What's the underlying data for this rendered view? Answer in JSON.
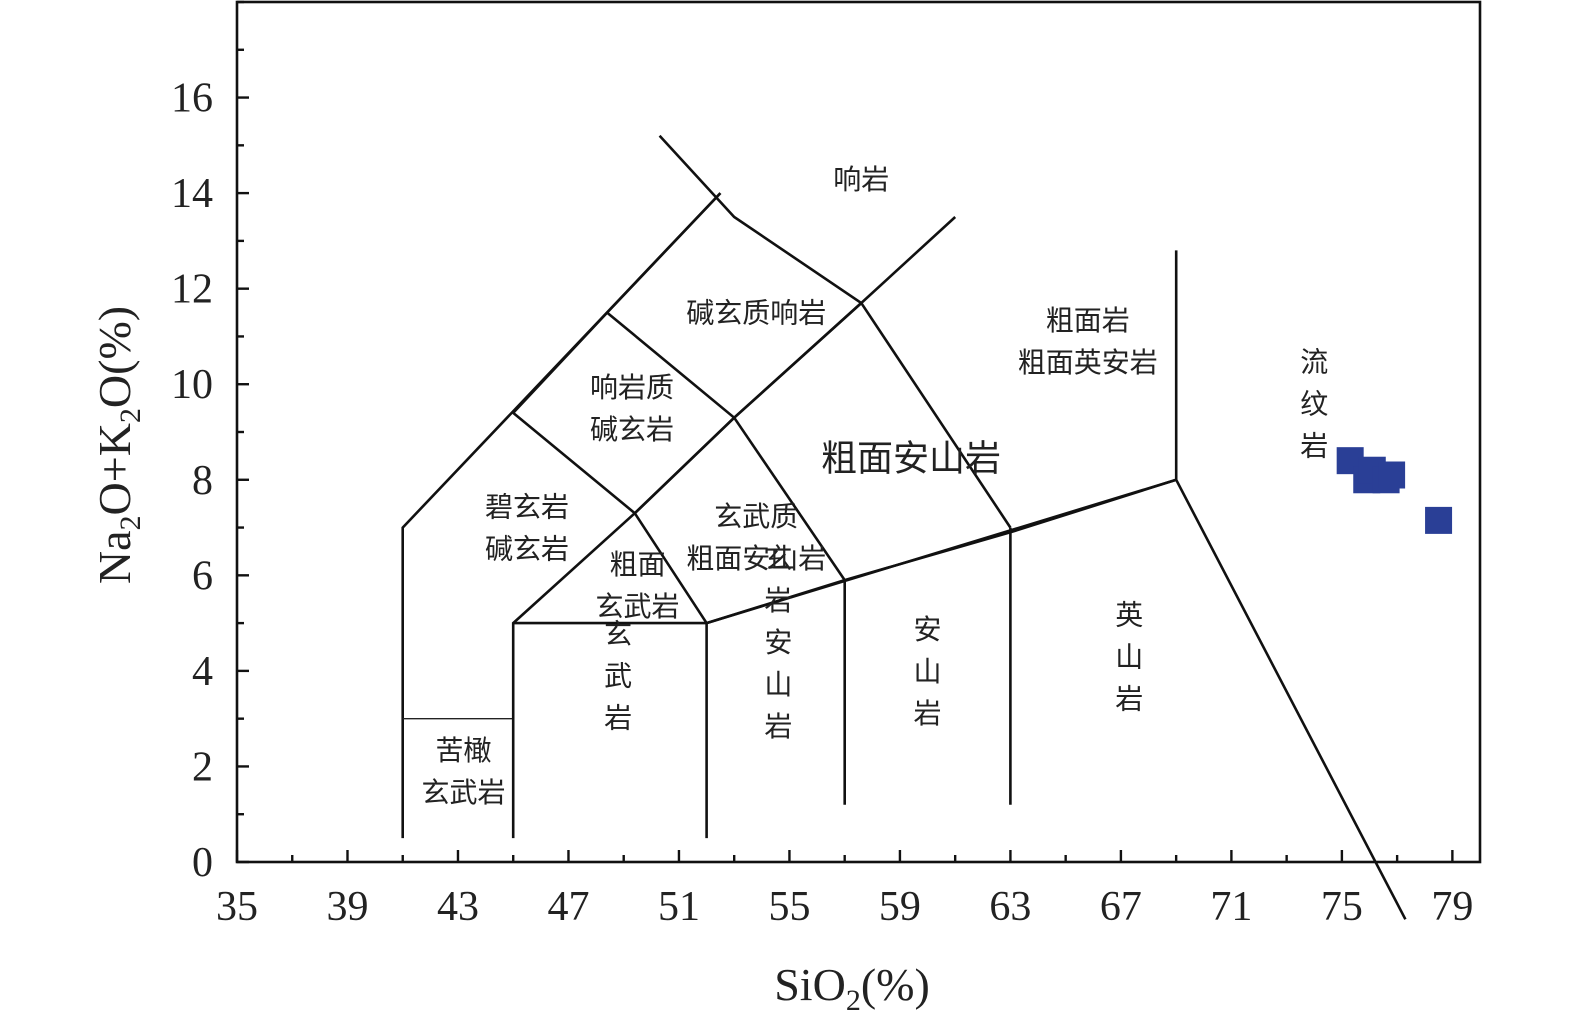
{
  "chart_data": {
    "type": "scatter",
    "xlabel": {
      "main": "SiO",
      "sub": "2",
      "tail": "(%)"
    },
    "ylabel": {
      "p1": "Na",
      "s1": "2",
      "p2": "O+K",
      "s2": "2",
      "p3": "O(%)"
    },
    "xlim": [
      35,
      80
    ],
    "ylim": [
      0,
      18
    ],
    "x_ticks": [
      35,
      39,
      43,
      47,
      51,
      55,
      59,
      63,
      67,
      71,
      75,
      79
    ],
    "x_tick_labels": [
      "35",
      "39",
      "43",
      "47",
      "51",
      "55",
      "59",
      "63",
      "67",
      "71",
      "75",
      "79"
    ],
    "y_ticks": [
      0,
      2,
      4,
      6,
      8,
      10,
      12,
      14,
      16
    ],
    "y_tick_labels": [
      "0",
      "2",
      "4",
      "6",
      "8",
      "10",
      "12",
      "14",
      "16"
    ],
    "x_minor_step": 2,
    "y_minor_step": 1,
    "grid": false,
    "series": [
      {
        "marker": "square",
        "color": "#2a3f96",
        "points": [
          {
            "x": 75.3,
            "y": 8.4
          },
          {
            "x": 75.9,
            "y": 8.0
          },
          {
            "x": 76.1,
            "y": 8.2
          },
          {
            "x": 76.6,
            "y": 8.0
          },
          {
            "x": 76.8,
            "y": 8.1
          },
          {
            "x": 78.5,
            "y": 7.15
          }
        ]
      }
    ],
    "boundaries": [
      [
        [
          41,
          0.5
        ],
        [
          41,
          7.0
        ],
        [
          52.5,
          14.0
        ]
      ],
      [
        [
          41,
          3.0
        ],
        [
          45,
          3.0
        ]
      ],
      [
        [
          45,
          0.5
        ],
        [
          45,
          5.0
        ],
        [
          49.4,
          7.3
        ],
        [
          53,
          9.3
        ],
        [
          57.6,
          11.7
        ],
        [
          61,
          13.5
        ]
      ],
      [
        [
          45,
          5.0
        ],
        [
          52,
          5.0
        ],
        [
          57,
          5.9
        ],
        [
          63,
          6.9
        ],
        [
          69,
          8.0
        ],
        [
          69,
          12.8
        ]
      ],
      [
        [
          52,
          0.5
        ],
        [
          52,
          5.0
        ],
        [
          69,
          8.0
        ],
        [
          77.3,
          -1.2
        ]
      ],
      [
        [
          45,
          9.4
        ],
        [
          48.4,
          11.5
        ],
        [
          52.5,
          14.0
        ]
      ],
      [
        [
          48.4,
          11.5
        ],
        [
          53,
          9.3
        ],
        [
          57.6,
          11.7
        ]
      ],
      [
        [
          50.3,
          15.2
        ],
        [
          53,
          13.5
        ],
        [
          57.6,
          11.7
        ],
        [
          63,
          7.0
        ]
      ],
      [
        [
          57,
          1.2
        ],
        [
          57,
          5.9
        ]
      ],
      [
        [
          63,
          1.2
        ],
        [
          63,
          7.0
        ]
      ],
      [
        [
          45,
          9.4
        ],
        [
          49.4,
          7.3
        ],
        [
          52,
          5.0
        ]
      ],
      [
        [
          49.4,
          7.3
        ],
        [
          53,
          9.3
        ]
      ],
      [
        [
          53,
          9.3
        ],
        [
          57,
          5.9
        ]
      ]
    ],
    "field_labels": [
      {
        "lines": [
          "响岩"
        ],
        "x": 57.6,
        "y": 14.3,
        "size": "normal"
      },
      {
        "lines": [
          "碱玄质响岩"
        ],
        "x": 53.8,
        "y": 11.5,
        "size": "normal"
      },
      {
        "lines": [
          "粗面岩",
          "粗面英安岩"
        ],
        "x": 65.8,
        "y": 10.9,
        "size": "normal"
      },
      {
        "lines": [
          "响岩质",
          "碱玄岩"
        ],
        "x": 49.3,
        "y": 9.5,
        "size": "normal"
      },
      {
        "lines": [
          "粗面安山岩"
        ],
        "x": 59.4,
        "y": 8.4,
        "size": "large"
      },
      {
        "lines": [
          "流",
          "纹",
          "岩"
        ],
        "x": 74.0,
        "y": 9.6,
        "size": "normal"
      },
      {
        "lines": [
          "碧玄岩",
          "碱玄岩"
        ],
        "x": 45.5,
        "y": 7.0,
        "size": "normal"
      },
      {
        "lines": [
          "玄武质",
          "粗面安山岩"
        ],
        "x": 53.8,
        "y": 6.8,
        "size": "normal"
      },
      {
        "lines": [
          "粗面",
          "玄武岩"
        ],
        "x": 49.5,
        "y": 5.8,
        "size": "normal"
      },
      {
        "lines": [
          "玄",
          "武",
          "岩"
        ],
        "x": 48.8,
        "y": 3.9,
        "size": "normal"
      },
      {
        "lines": [
          "玄",
          "岩",
          "安",
          "山",
          "岩"
        ],
        "x": 54.6,
        "y": 4.6,
        "size": "normal"
      },
      {
        "lines": [
          "安",
          "山",
          "岩"
        ],
        "x": 60.0,
        "y": 4.0,
        "size": "normal"
      },
      {
        "lines": [
          "英",
          "山",
          "岩"
        ],
        "x": 67.3,
        "y": 4.3,
        "size": "normal"
      },
      {
        "lines": [
          "苦橄",
          "玄武岩"
        ],
        "x": 43.2,
        "y": 1.9,
        "size": "normal"
      }
    ]
  }
}
